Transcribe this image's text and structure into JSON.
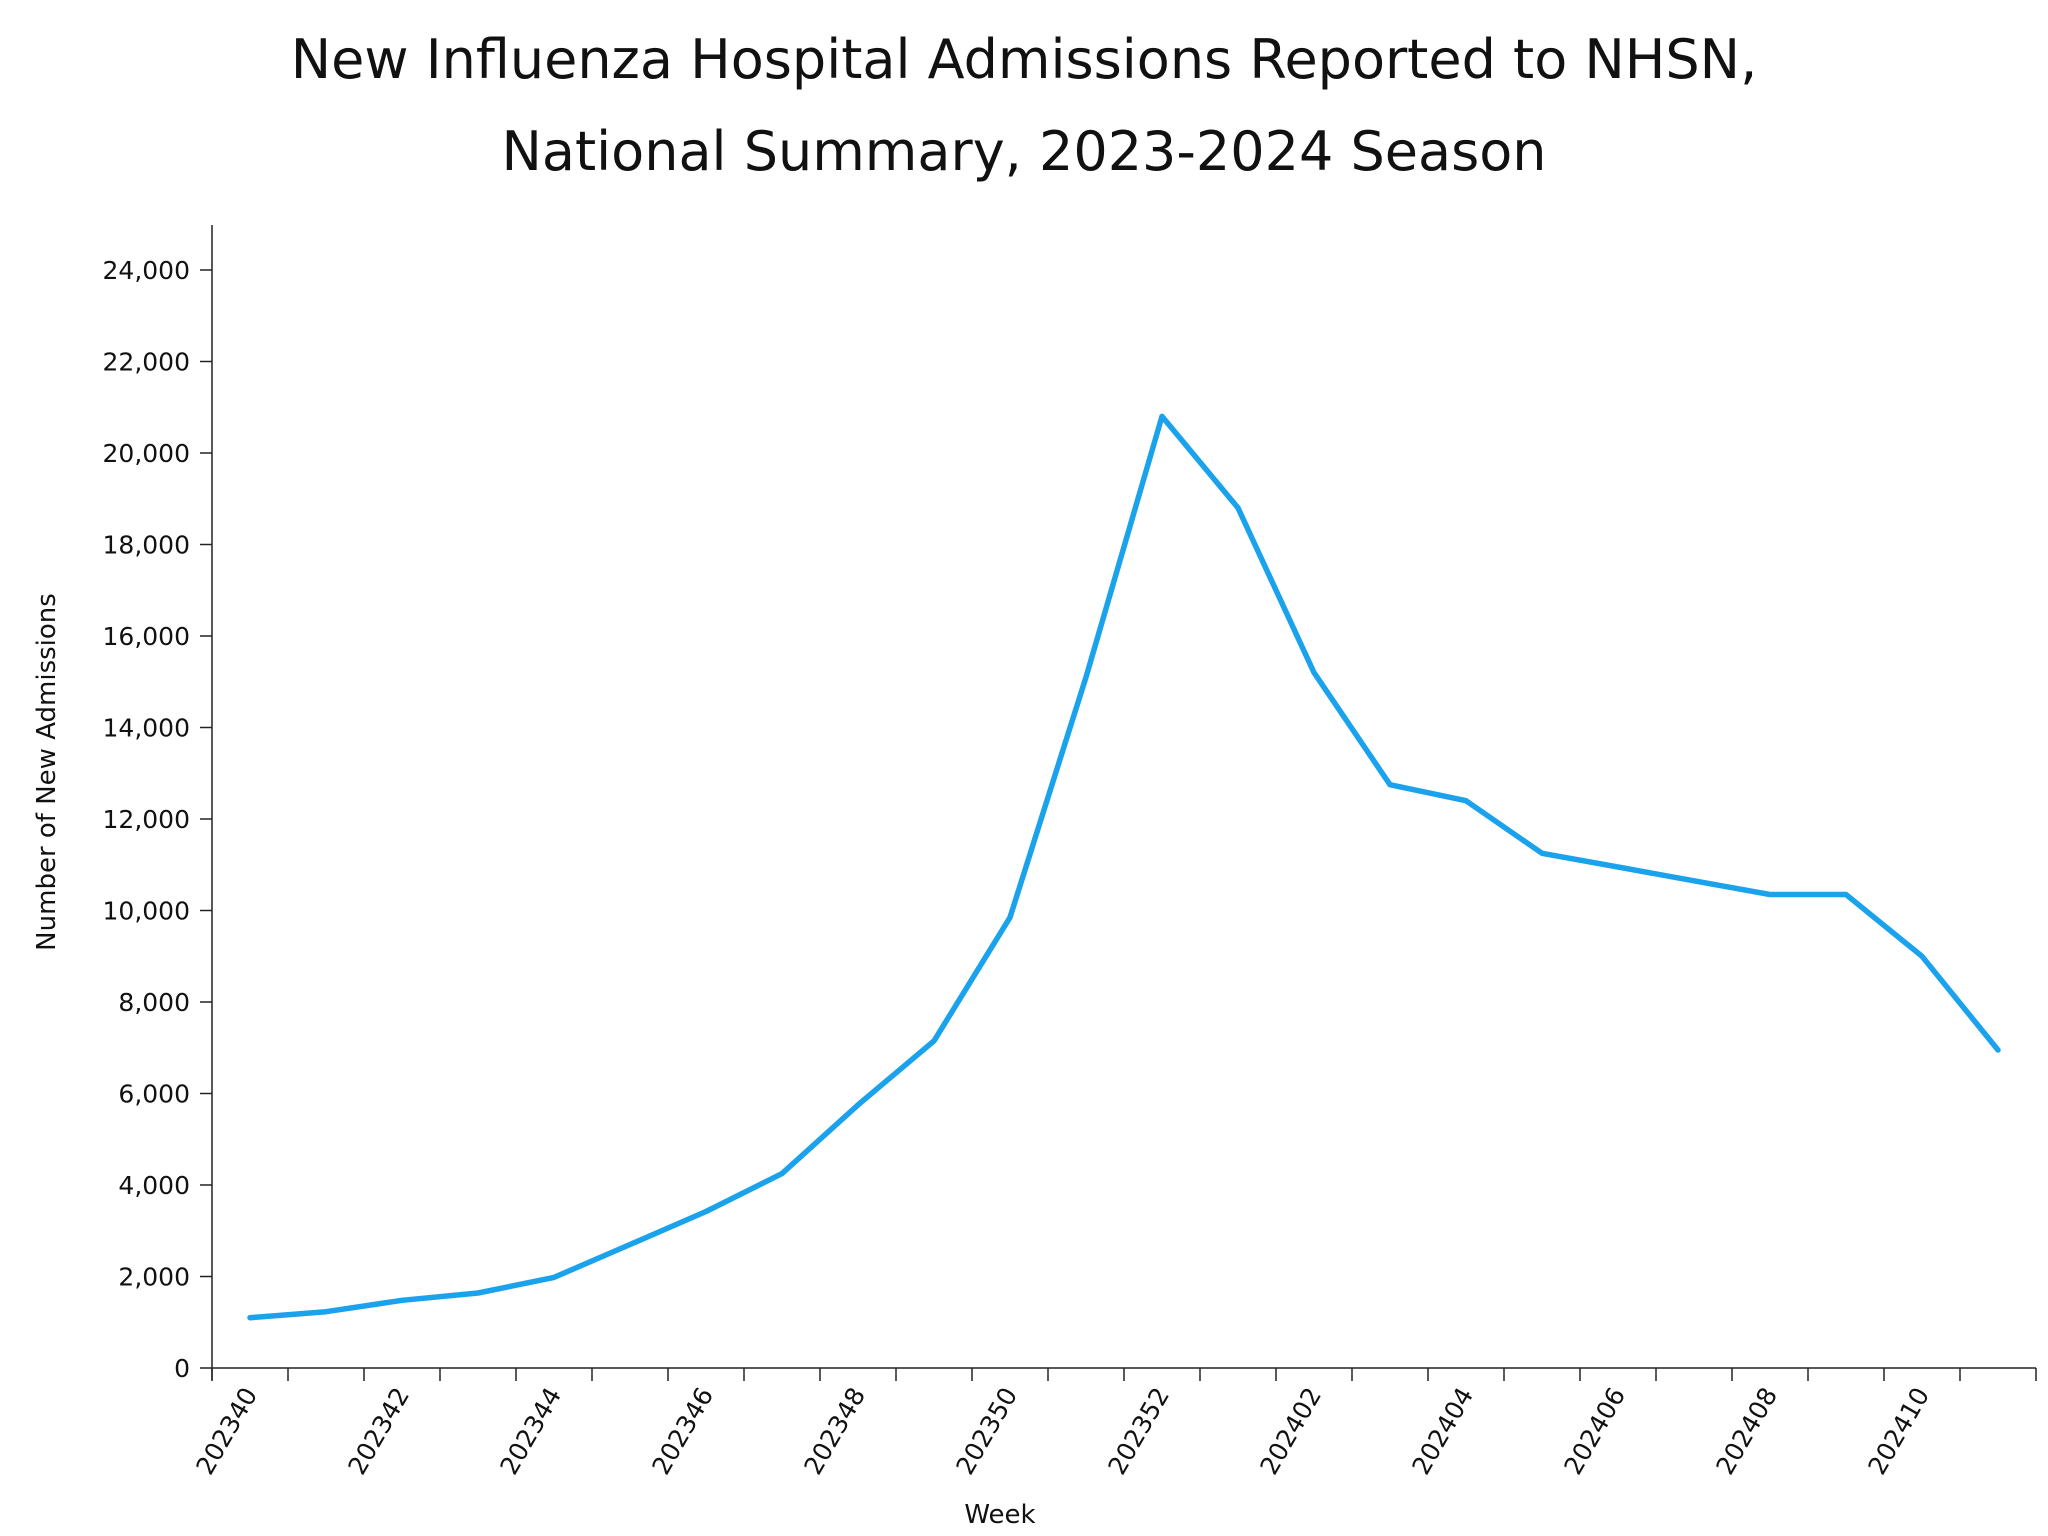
{
  "chart_data": {
    "type": "line",
    "title": [
      "New Influenza Hospital Admissions Reported to NHSN,",
      "National Summary, 2023-2024 Season"
    ],
    "xlabel": "Week",
    "ylabel": "Number of New Admissions",
    "x_tick_labels": [
      "202340",
      "202342",
      "202344",
      "202346",
      "202348",
      "202350",
      "202352",
      "202402",
      "202404",
      "202406",
      "202408",
      "202410"
    ],
    "y_tick_labels": [
      "0",
      "2,000",
      "4,000",
      "6,000",
      "8,000",
      "10,000",
      "12,000",
      "14,000",
      "16,000",
      "18,000",
      "20,000",
      "22,000",
      "24,000"
    ],
    "ylim": [
      0,
      25000
    ],
    "y_ticks": [
      0,
      2000,
      4000,
      6000,
      8000,
      10000,
      12000,
      14000,
      16000,
      18000,
      20000,
      22000,
      24000
    ],
    "line_color": "#1aa3ec",
    "grid": false,
    "series": [
      {
        "x": [
          "202340",
          "202341",
          "202342",
          "202343",
          "202344",
          "202345",
          "202346",
          "202347",
          "202348",
          "202349",
          "202350",
          "202351",
          "202352",
          "202401",
          "202402",
          "202403",
          "202404",
          "202405",
          "202406",
          "202407",
          "202408",
          "202409",
          "202410",
          "202411"
        ],
        "values": [
          1100,
          1230,
          1480,
          1640,
          1980,
          2700,
          3420,
          4250,
          5750,
          7150,
          9850,
          15100,
          20800,
          18800,
          15200,
          12750,
          12400,
          11250,
          10950,
          10650,
          10350,
          10350,
          9000,
          6950
        ]
      }
    ]
  }
}
